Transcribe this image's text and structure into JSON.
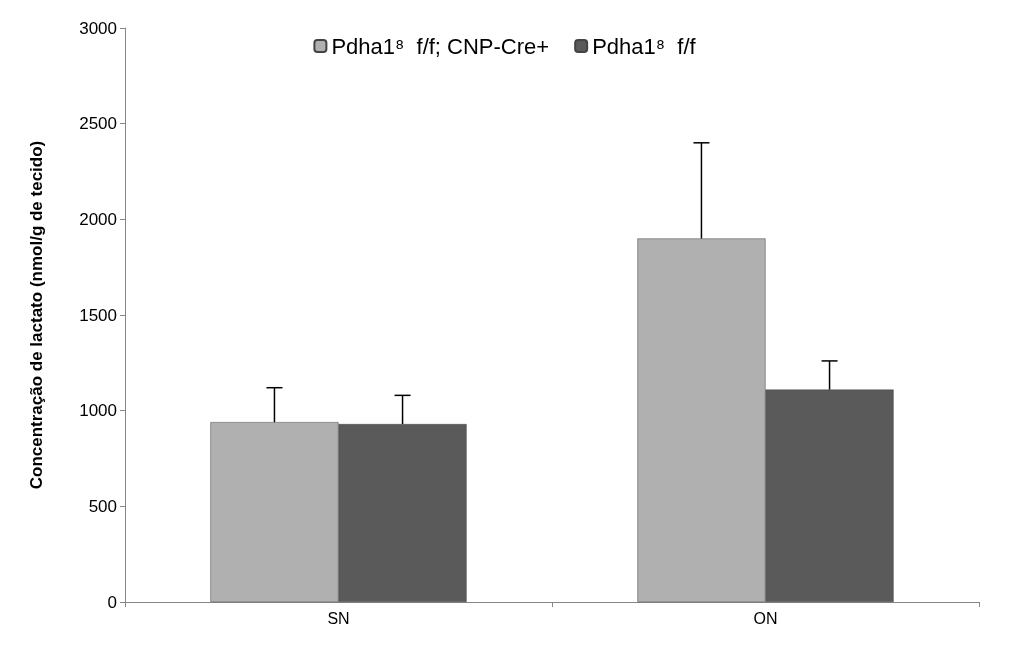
{
  "chart_data": {
    "type": "bar",
    "ylabel": "Concentração de lactato (nmol/g de tecido)",
    "categories": [
      "SN",
      "ON"
    ],
    "series": [
      {
        "name": "Pdha1⁸  f/f; CNP-Cre+",
        "color": "#b0b0b0",
        "values": [
          940,
          1900
        ],
        "errors": [
          [
            940,
            1120
          ],
          [
            1900,
            2400
          ]
        ]
      },
      {
        "name": "Pdha1⁸  f/f",
        "color": "#5a5a5a",
        "values": [
          930,
          1110
        ],
        "errors": [
          [
            930,
            1080
          ],
          [
            1110,
            1260
          ]
        ]
      }
    ],
    "ylim": [
      0,
      3000
    ],
    "yticks": [
      0,
      500,
      1000,
      1500,
      2000,
      2500,
      3000
    ],
    "grid": false,
    "legend": "top"
  }
}
